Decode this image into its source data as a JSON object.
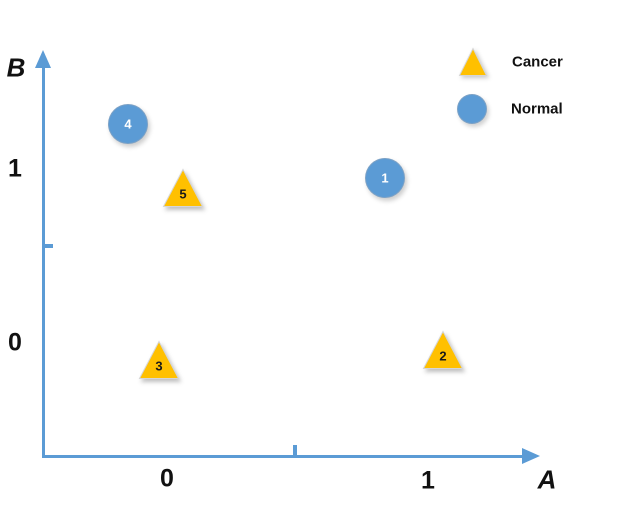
{
  "colors": {
    "axis_blue": "#5b9bd5",
    "normal_fill": "#5b9bd5",
    "cancer_fill": "#ffc000",
    "marker_edge": "#d6d6d6",
    "text": "#111111"
  },
  "axes": {
    "x": {
      "label": "A",
      "ticks": [
        {
          "label": "0"
        },
        {
          "label": "1"
        }
      ]
    },
    "y": {
      "label": "B",
      "ticks": [
        {
          "label": "1"
        },
        {
          "label": "0"
        }
      ]
    }
  },
  "legend": {
    "items": [
      {
        "label": "Cancer",
        "marker": "triangle"
      },
      {
        "label": "Normal",
        "marker": "circle"
      }
    ]
  },
  "chart_data": {
    "type": "scatter",
    "title": "",
    "xlabel": "A",
    "ylabel": "B",
    "x_ticks": [
      0,
      1
    ],
    "y_ticks": [
      0,
      1
    ],
    "grid": false,
    "legend_position": "top-right",
    "series": [
      {
        "name": "Cancer",
        "marker": "triangle",
        "color": "#ffc000",
        "points": [
          {
            "id": "5",
            "x": 0.06,
            "y": 0.88,
            "px": 183,
            "py": 188
          },
          {
            "id": "3",
            "x": -0.03,
            "y": -0.1,
            "px": 159,
            "py": 360
          },
          {
            "id": "2",
            "x": 1.06,
            "y": -0.04,
            "px": 443,
            "py": 350
          }
        ]
      },
      {
        "name": "Normal",
        "marker": "circle",
        "color": "#5b9bd5",
        "points": [
          {
            "id": "4",
            "x": -0.15,
            "y": 1.26,
            "px": 128,
            "py": 124
          },
          {
            "id": "1",
            "x": 0.84,
            "y": 0.95,
            "px": 385,
            "py": 178
          }
        ]
      }
    ]
  }
}
